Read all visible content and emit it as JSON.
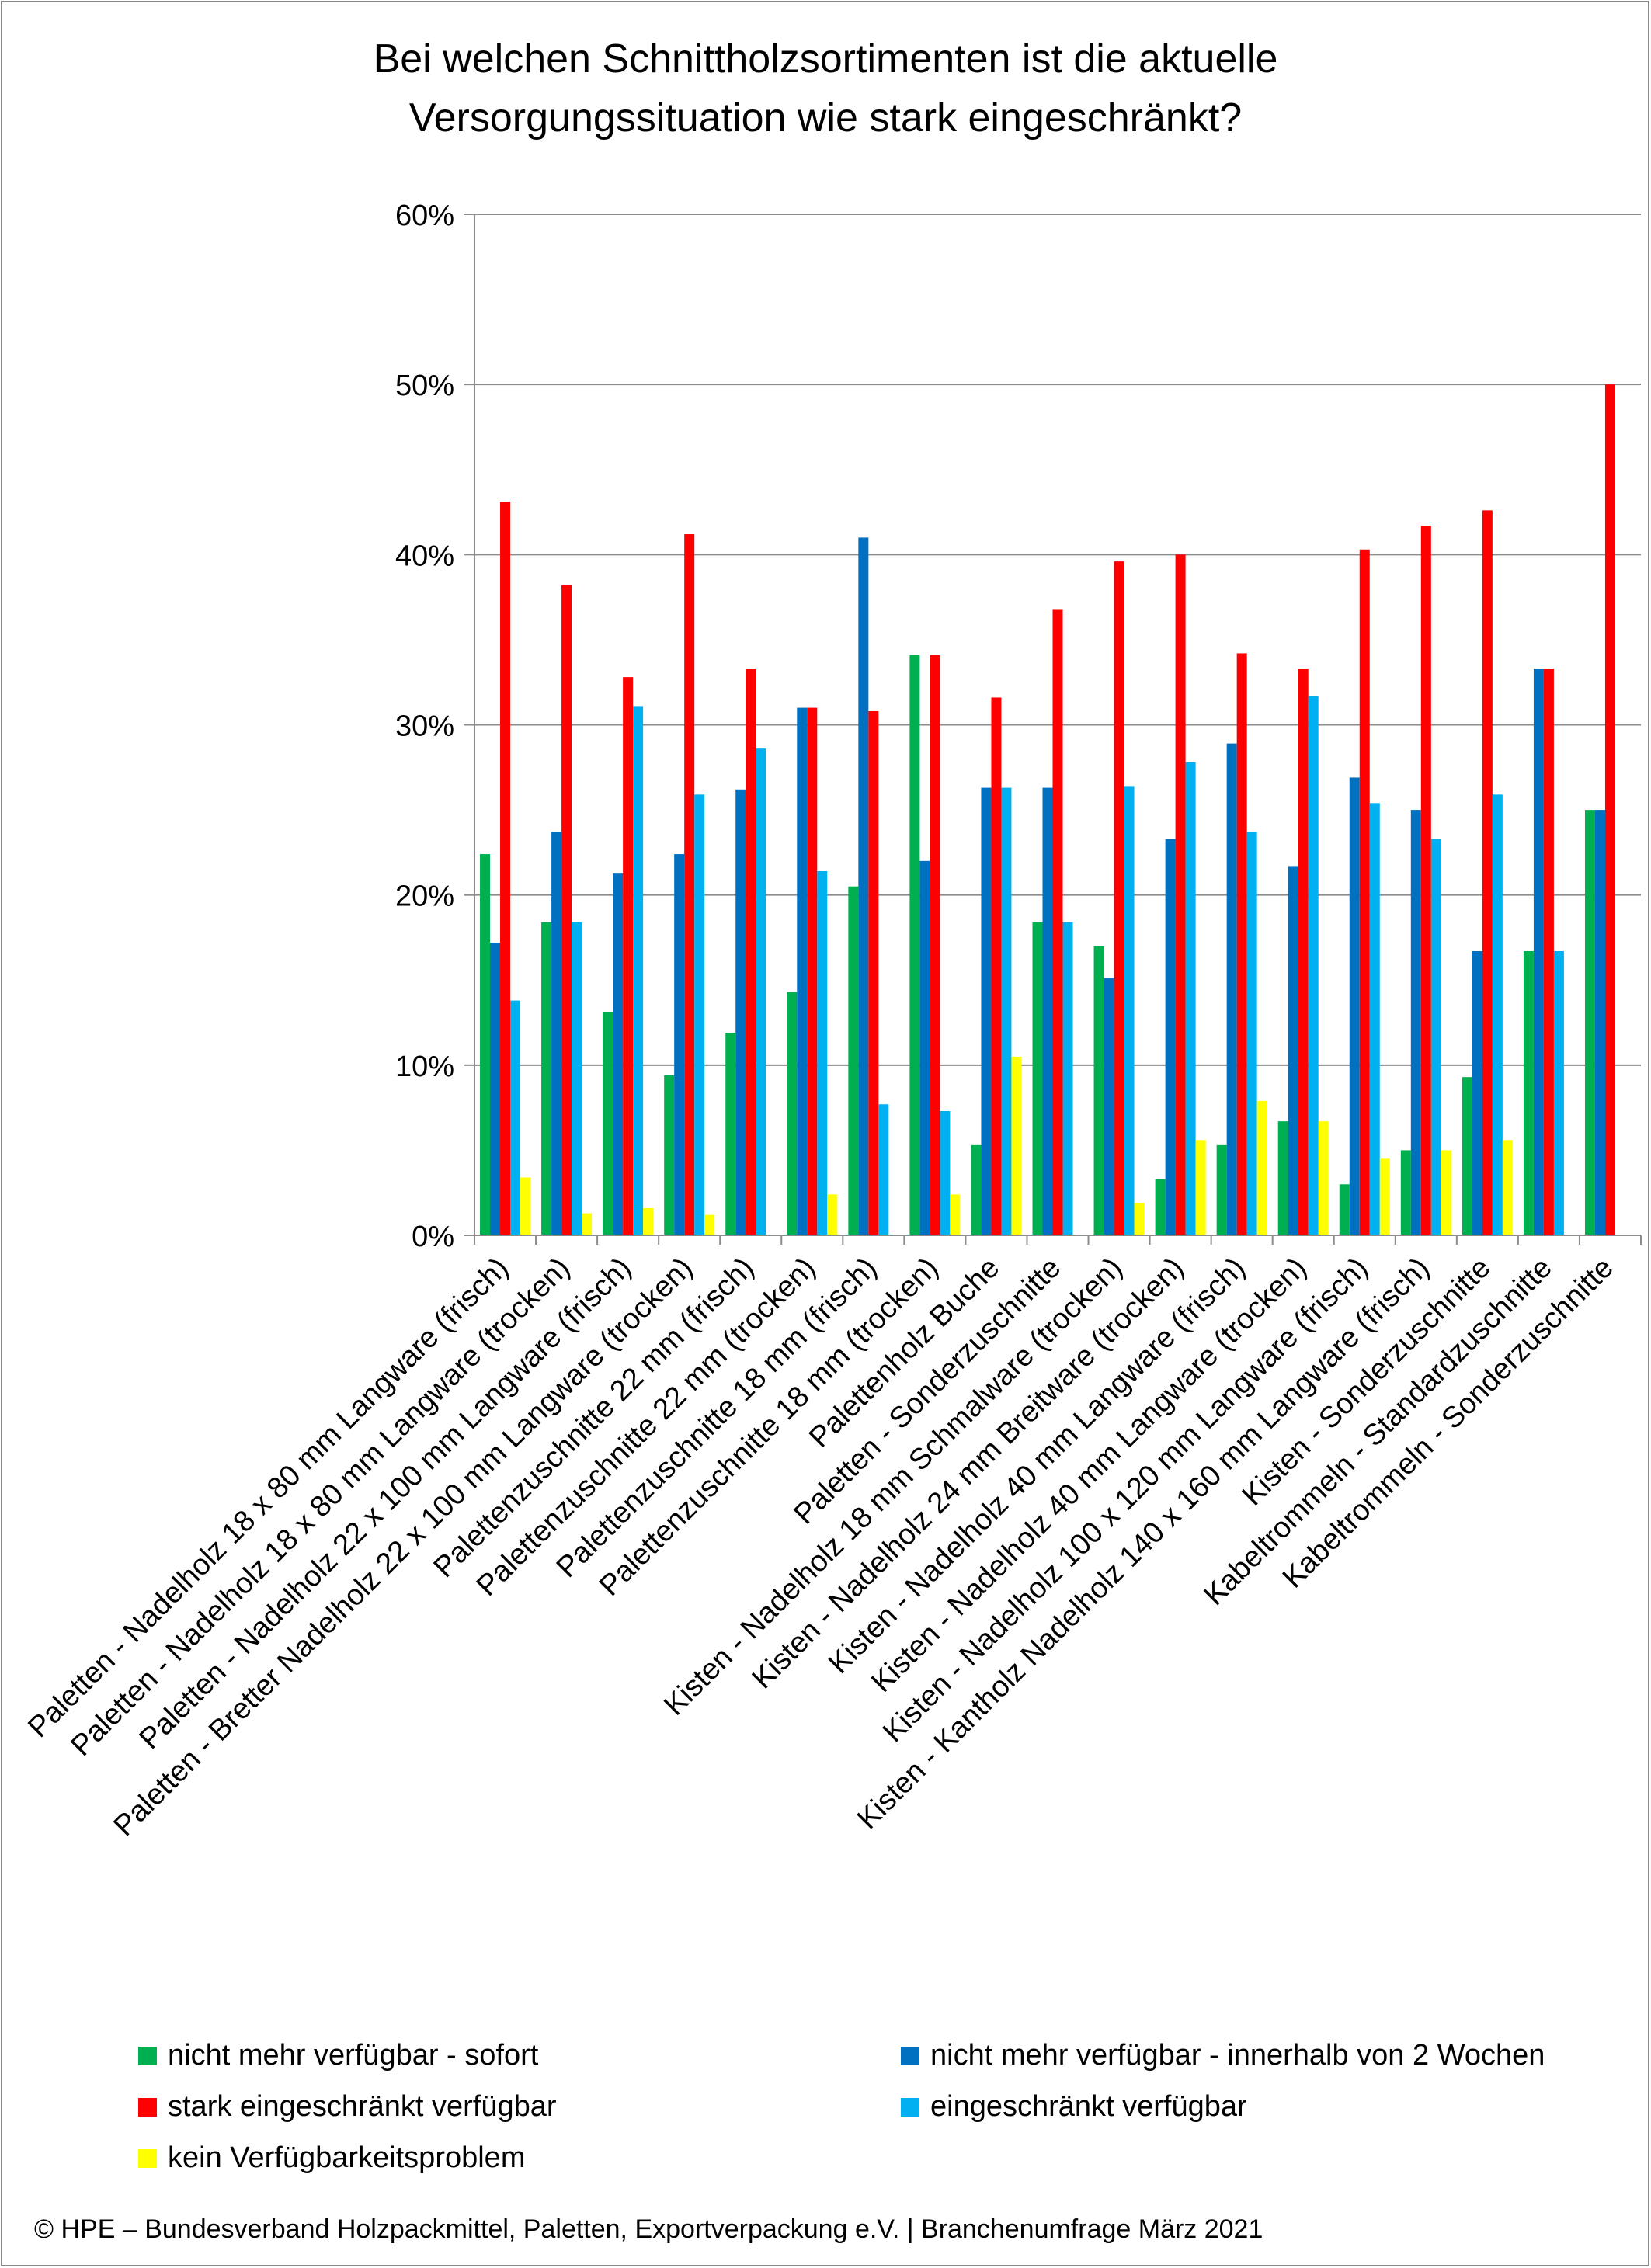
{
  "title_line1": "Bei welchen Schnittholzsortimenten ist die aktuelle",
  "title_line2": "Versorgungssituation wie stark eingeschränkt?",
  "footer": "© HPE – Bundesverband Holzpackmittel, Paletten, Exportverpackung e.V.  | Branchenumfrage März 2021",
  "chart_data": {
    "type": "bar",
    "title": "Bei welchen Schnittholzsortimenten ist die aktuelle Versorgungssituation wie stark eingeschränkt?",
    "ylim": [
      0,
      60
    ],
    "yticks": [
      "0%",
      "10%",
      "20%",
      "30%",
      "40%",
      "50%",
      "60%"
    ],
    "grid": true,
    "legend_position": "bottom",
    "categories": [
      "Paletten - Nadelholz 18 x 80 mm Langware (frisch)",
      "Paletten - Nadelholz 18 x 80 mm Langware (trocken)",
      "Paletten - Nadelholz 22 x 100 mm Langware (frisch)",
      "Paletten - Bretter Nadelholz 22 x 100 mm Langware (trocken)",
      "Palettenzuschnitte 22 mm (frisch)",
      "Palettenzuschnitte 22 mm (trocken)",
      "Palettenzuschnitte 18 mm (frisch)",
      "Palettenzuschnitte 18 mm (trocken)",
      "Palettenholz Buche",
      "Paletten - Sonderzuschnitte",
      "Kisten - Nadelholz 18 mm Schmalware (trocken)",
      "Kisten - Nadelholz 24 mm Breitware (trocken)",
      "Kisten - Nadelholz 40 mm Langware (frisch)",
      "Kisten - Nadelholz 40 mm Langware (trocken)",
      "Kisten - Nadelholz 100 x 120 mm Langware (frisch)",
      "Kisten - Kantholz Nadelholz 140 x 160 mm Langware (frisch)",
      "Kisten - Sonderzuschnitte",
      "Kabeltrommeln - Standardzuschnitte",
      "Kabeltrommeln - Sonderzuschnitte"
    ],
    "series": [
      {
        "name": "nicht mehr verfügbar - sofort",
        "color": "#00b050",
        "values": [
          22.4,
          18.4,
          13.1,
          9.4,
          11.9,
          14.3,
          20.5,
          34.1,
          5.3,
          18.4,
          17.0,
          3.3,
          5.3,
          6.7,
          3.0,
          5.0,
          9.3,
          16.7,
          25.0
        ]
      },
      {
        "name": "nicht mehr verfügbar -  innerhalb von 2 Wochen",
        "color": "#0070c0",
        "values": [
          17.2,
          23.7,
          21.3,
          22.4,
          26.2,
          31.0,
          41.0,
          22.0,
          26.3,
          26.3,
          15.1,
          23.3,
          28.9,
          21.7,
          26.9,
          25.0,
          16.7,
          33.3,
          25.0
        ]
      },
      {
        "name": "stark eingeschränkt verfügbar",
        "color": "#ff0000",
        "values": [
          43.1,
          38.2,
          32.8,
          41.2,
          33.3,
          31.0,
          30.8,
          34.1,
          31.6,
          36.8,
          39.6,
          40.0,
          34.2,
          33.3,
          40.3,
          41.7,
          42.6,
          33.3,
          50.0
        ]
      },
      {
        "name": "eingeschränkt verfügbar",
        "color": "#00b0f0",
        "values": [
          13.8,
          18.4,
          31.1,
          25.9,
          28.6,
          21.4,
          7.7,
          7.3,
          26.3,
          18.4,
          26.4,
          27.8,
          23.7,
          31.7,
          25.4,
          23.3,
          25.9,
          16.7,
          0
        ]
      },
      {
        "name": "kein Verfügbarkeitsproblem",
        "color": "#ffff00",
        "values": [
          3.4,
          1.3,
          1.6,
          1.2,
          0,
          2.4,
          0,
          2.4,
          10.5,
          0,
          1.9,
          5.6,
          7.9,
          6.7,
          4.5,
          5.0,
          5.6,
          0,
          0
        ]
      }
    ]
  }
}
